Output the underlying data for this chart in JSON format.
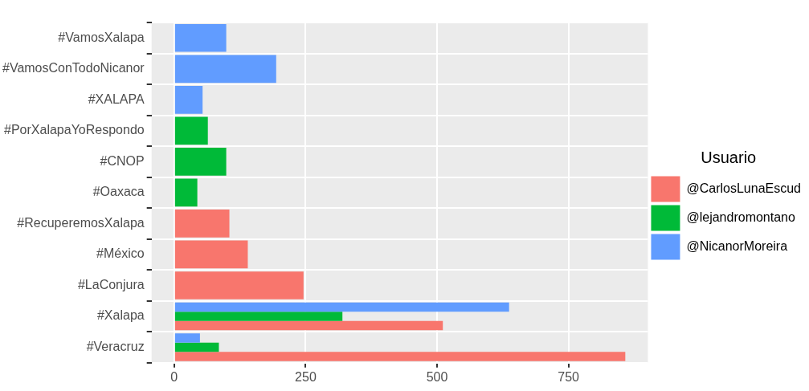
{
  "chart_data": {
    "type": "bar",
    "orientation": "horizontal",
    "categories": [
      "#VamosXalapa",
      "#VamosConTodoNicanor",
      "#XALAPA",
      "#PorXalapaYoRespondo",
      "#CNOP",
      "#Oaxaca",
      "#RecuperemosXalapa",
      "#México",
      "#LaConjura",
      "#Xalapa",
      "#Veracruz"
    ],
    "series": [
      {
        "name": "@CarlosLunaEscud",
        "color": "#f8766d",
        "values": [
          null,
          null,
          null,
          null,
          null,
          null,
          105,
          140,
          246,
          511,
          858
        ]
      },
      {
        "name": "@lejandromontano",
        "color": "#00ba38",
        "values": [
          null,
          null,
          null,
          64,
          99,
          44,
          null,
          null,
          null,
          320,
          85
        ]
      },
      {
        "name": "@NicanorMoreira",
        "color": "#619cff",
        "values": [
          99,
          194,
          54,
          null,
          null,
          null,
          null,
          null,
          null,
          637,
          49
        ]
      }
    ],
    "xlim": [
      -43,
      901
    ],
    "xticks": [
      0,
      250,
      500,
      750
    ],
    "grid": true,
    "legend": "right",
    "legend_title": "Usuario"
  }
}
